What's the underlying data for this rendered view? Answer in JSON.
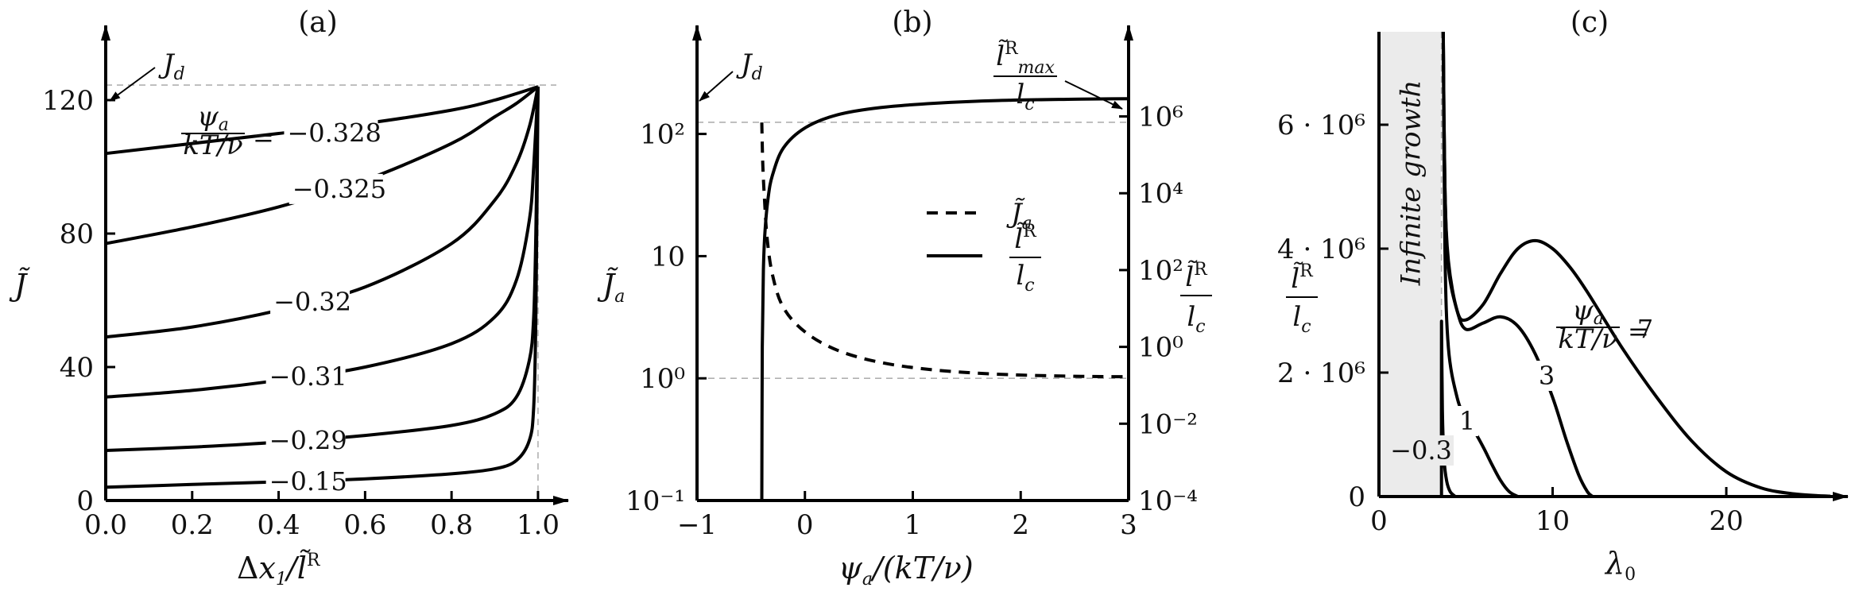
{
  "chart_data": [
    {
      "type": "line",
      "title": "(a)",
      "xlabel": "Δx₁/l̃ᴿ",
      "ylabel": "J̃",
      "xlim": [
        0,
        1.07
      ],
      "ylim": [
        0,
        150
      ],
      "xticks": [
        0,
        0.2,
        0.4,
        0.6,
        0.8,
        1.0
      ],
      "xtick_labels": [
        "0.0",
        "0.2",
        "0.4",
        "0.6",
        "0.8",
        "1.0"
      ],
      "yticks": [
        0,
        40,
        80,
        120
      ],
      "ytick_labels": [
        "0",
        "40",
        "80",
        "120"
      ],
      "reference_line": {
        "name": "J_d",
        "y": 124.5
      },
      "legend_prefix": "ψa/(kT/ν) =",
      "series": [
        {
          "name": "−0.328",
          "x": [
            0,
            0.2,
            0.4,
            0.6,
            0.8,
            0.9,
            1.0
          ],
          "y": [
            104,
            107,
            110,
            113,
            117,
            120,
            124
          ]
        },
        {
          "name": "−0.325",
          "x": [
            0,
            0.2,
            0.4,
            0.6,
            0.8,
            0.9,
            0.95,
            1.0
          ],
          "y": [
            77,
            82,
            88,
            96,
            107,
            115,
            119,
            124
          ]
        },
        {
          "name": "−0.32",
          "x": [
            0,
            0.2,
            0.4,
            0.6,
            0.8,
            0.9,
            0.95,
            0.98,
            1.0
          ],
          "y": [
            49,
            52,
            57,
            64,
            77,
            90,
            101,
            112,
            124
          ]
        },
        {
          "name": "−0.31",
          "x": [
            0,
            0.2,
            0.4,
            0.6,
            0.8,
            0.9,
            0.95,
            0.98,
            0.99,
            1.0
          ],
          "y": [
            31,
            33,
            36,
            40,
            47,
            55,
            66,
            84,
            100,
            124
          ]
        },
        {
          "name": "−0.29",
          "x": [
            0,
            0.2,
            0.4,
            0.6,
            0.8,
            0.9,
            0.95,
            0.98,
            0.99,
            0.995,
            1.0
          ],
          "y": [
            15,
            16,
            17.5,
            19.5,
            22.5,
            26,
            31,
            42,
            55,
            80,
            124
          ]
        },
        {
          "name": "−0.15",
          "x": [
            0,
            0.2,
            0.4,
            0.6,
            0.8,
            0.9,
            0.95,
            0.98,
            0.99,
            0.995,
            1.0
          ],
          "y": [
            4,
            4.8,
            5.6,
            6.5,
            8,
            9.5,
            12,
            18,
            28,
            55,
            124
          ]
        }
      ]
    },
    {
      "type": "line",
      "title": "(b)",
      "xlabel": "ψa/(kT/ν)",
      "ylabel": "J̃a",
      "ylabel_right": "l̃ᴿ/lc",
      "xlim": [
        -1,
        3
      ],
      "ylim_left": [
        0.1,
        400
      ],
      "yscale_left": "log",
      "ylim_right": [
        0.0001,
        160000000.0
      ],
      "yscale_right": "log",
      "xticks": [
        -1,
        0,
        1,
        2,
        3
      ],
      "xtick_labels": [
        "−1",
        "0",
        "1",
        "2",
        "3"
      ],
      "yticks_left": [
        0.1,
        1,
        10,
        100
      ],
      "ytick_labels_left": [
        "10⁻¹",
        "10⁰",
        "10",
        "10²"
      ],
      "yticks_right": [
        0.0001,
        0.01,
        1,
        100,
        10000,
        1000000
      ],
      "ytick_labels_right": [
        "10⁻⁴",
        "10⁻²",
        "10⁰",
        "10²",
        "10⁴",
        "10⁶"
      ],
      "reference_lines": [
        {
          "name": "J_d",
          "axis": "left",
          "y": 124.5
        },
        {
          "name": "",
          "axis": "left",
          "y": 1
        }
      ],
      "annotation_right": "l̃ᴿmax/lc",
      "legend_position": "center-right",
      "series": [
        {
          "name": "J̃a",
          "style": "dashed",
          "axis": "left",
          "x": [
            -0.4,
            -0.39,
            -0.375,
            -0.35,
            -0.3,
            -0.2,
            0,
            0.3,
            0.7,
            1.2,
            1.8,
            2.5,
            3.0
          ],
          "y": [
            124,
            55,
            30,
            14,
            7,
            3.8,
            2.4,
            1.7,
            1.35,
            1.17,
            1.08,
            1.04,
            1.03
          ]
        },
        {
          "name": "l̃ᴿ/lc",
          "style": "solid",
          "axis": "right",
          "x": [
            -0.4,
            -0.395,
            -0.385,
            -0.37,
            -0.34,
            -0.3,
            -0.2,
            0,
            0.3,
            0.7,
            1.2,
            1.8,
            2.5,
            3.0
          ],
          "y": [
            0.0001,
            1,
            100,
            1000,
            8000,
            30000,
            150000,
            500000,
            1100000,
            1700000,
            2200000,
            2600000,
            2800000,
            2900000
          ]
        }
      ]
    },
    {
      "type": "line",
      "title": "(c)",
      "xlabel": "λ₀",
      "ylabel": "l̃ᴿ/lc",
      "xlim": [
        0,
        27
      ],
      "ylim": [
        0,
        7500000
      ],
      "xticks": [
        0,
        10,
        20
      ],
      "xtick_labels": [
        "0",
        "10",
        "20"
      ],
      "yticks": [
        0,
        2000000,
        4000000,
        6000000
      ],
      "ytick_labels": [
        "0",
        "2 · 10⁶",
        "4 · 10⁶",
        "6 · 10⁶"
      ],
      "shaded_region": {
        "label": "Infinite growth",
        "x": [
          0,
          3.6
        ]
      },
      "legend_prefix": "ψa/(kT/ν) =",
      "series": [
        {
          "name": "7",
          "x": [
            3.7,
            3.8,
            4.0,
            4.5,
            5.0,
            6.0,
            7.0,
            8.0,
            9.0,
            10.0,
            11.0,
            12.0,
            14.0,
            16.0,
            18.0,
            20.0,
            22.0,
            24.0,
            26.0
          ],
          "y": [
            7500000,
            5000000,
            3800000,
            3000000,
            2850000,
            3100000,
            3600000,
            4000000,
            4130000,
            4000000,
            3700000,
            3300000,
            2400000,
            1600000,
            900000,
            400000,
            140000,
            40000,
            5000
          ]
        },
        {
          "name": "3",
          "x": [
            3.7,
            3.8,
            4.0,
            4.5,
            5.0,
            6.0,
            7.0,
            8.0,
            9.0,
            10.0,
            10.8,
            11.5,
            12.0,
            12.3
          ],
          "y": [
            7500000,
            5000000,
            3700000,
            3000000,
            2700000,
            2800000,
            2900000,
            2750000,
            2300000,
            1600000,
            900000,
            350000,
            80000,
            0
          ]
        },
        {
          "name": "1",
          "x": [
            3.7,
            3.8,
            4.0,
            4.5,
            5.0,
            5.5,
            6.0,
            6.5,
            7.0,
            7.5,
            8.0
          ],
          "y": [
            7500000,
            4000000,
            2400000,
            1600000,
            1250000,
            1050000,
            800000,
            520000,
            260000,
            80000,
            0
          ]
        },
        {
          "name": "−0.3",
          "x": [
            3.6,
            3.6,
            3.65,
            3.75,
            3.9,
            4.1,
            4.4
          ],
          "y": [
            0,
            2800000,
            1400000,
            600000,
            250000,
            80000,
            0
          ]
        }
      ]
    }
  ]
}
